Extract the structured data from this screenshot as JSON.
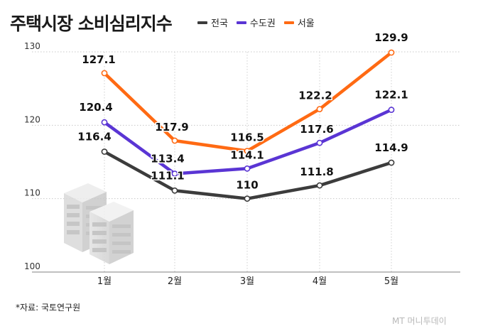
{
  "title": "주택시장 소비심리지수",
  "source": "*자료: 국토연구원",
  "brand": "MT 머니투데이",
  "colors": {
    "national": "#3c3c3c",
    "capital": "#5a35d4",
    "seoul": "#ff6a13"
  },
  "chart_data": {
    "type": "line",
    "categories": [
      "1월",
      "2월",
      "3월",
      "4월",
      "5월"
    ],
    "y_ticks": [
      "130",
      "120",
      "110",
      "100"
    ],
    "ylim": [
      100,
      130
    ],
    "series": [
      {
        "name": "전국",
        "values": [
          116.4,
          111.1,
          110,
          111.8,
          114.9
        ],
        "labels": [
          "116.4",
          "111.1",
          "110",
          "111.8",
          "114.9"
        ]
      },
      {
        "name": "수도권",
        "values": [
          120.4,
          113.4,
          114.1,
          117.6,
          122.1
        ],
        "labels": [
          "120.4",
          "113.4",
          "114.1",
          "117.6",
          "122.1"
        ]
      },
      {
        "name": "서울",
        "values": [
          127.1,
          117.9,
          116.5,
          122.2,
          129.9
        ],
        "labels": [
          "127.1",
          "117.9",
          "116.5",
          "122.2",
          "129.9"
        ]
      }
    ],
    "grid": true,
    "legend": "top"
  }
}
